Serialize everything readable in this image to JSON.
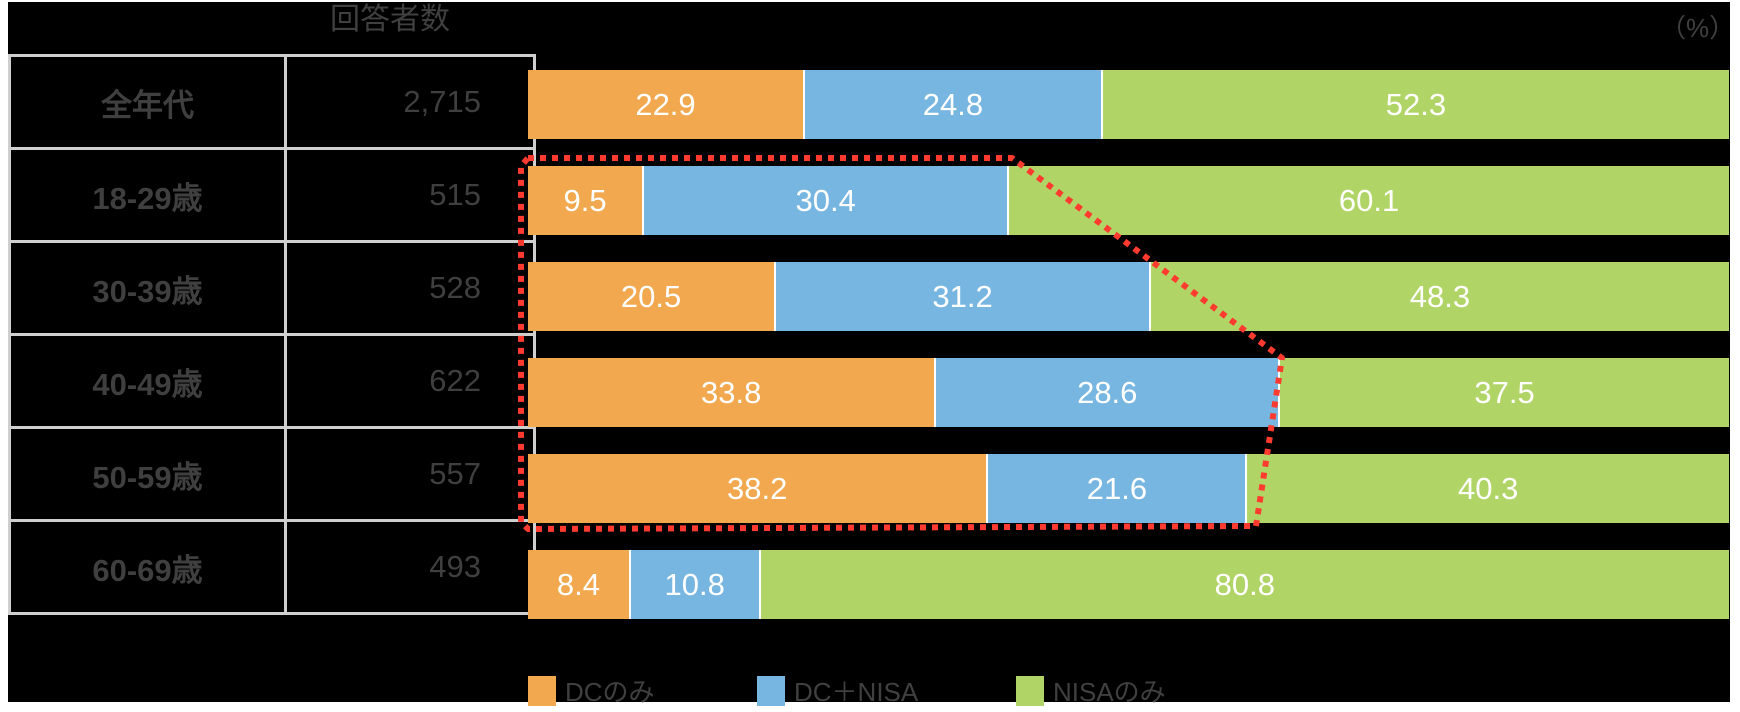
{
  "header": {
    "count_column_title": "回答者数",
    "unit_label": "（%）"
  },
  "colors": {
    "dc_only": "#f2a84f",
    "dc_nisa": "#78b6e2",
    "nisa_only": "#b1d466",
    "highlight_outline": "#ff3b30"
  },
  "rows": [
    {
      "label": "全年代",
      "count": "2,715",
      "values": [
        "22.9",
        "24.8",
        "52.3"
      ]
    },
    {
      "label": "18-29歳",
      "count": "515",
      "values": [
        "9.5",
        "30.4",
        "60.1"
      ]
    },
    {
      "label": "30-39歳",
      "count": "528",
      "values": [
        "20.5",
        "31.2",
        "48.3"
      ]
    },
    {
      "label": "40-49歳",
      "count": "622",
      "values": [
        "33.8",
        "28.6",
        "37.5"
      ]
    },
    {
      "label": "50-59歳",
      "count": "557",
      "values": [
        "38.2",
        "21.6",
        "40.3"
      ]
    },
    {
      "label": "60-69歳",
      "count": "493",
      "values": [
        "8.4",
        "10.8",
        "80.8"
      ]
    }
  ],
  "legend": [
    "DCのみ",
    "DC＋NISA",
    "NISAのみ"
  ],
  "chart_data": {
    "type": "bar",
    "orientation": "horizontal",
    "stacked": true,
    "percent_stacked": true,
    "categories": [
      "全年代",
      "18-29歳",
      "30-39歳",
      "40-49歳",
      "50-59歳",
      "60-69歳"
    ],
    "respondents": [
      2715,
      515,
      528,
      622,
      557,
      493
    ],
    "series": [
      {
        "name": "DCのみ",
        "color": "#f2a84f",
        "values": [
          22.9,
          9.5,
          20.5,
          33.8,
          38.2,
          8.4
        ]
      },
      {
        "name": "DC＋NISA",
        "color": "#78b6e2",
        "values": [
          24.8,
          30.4,
          31.2,
          28.6,
          21.6,
          10.8
        ]
      },
      {
        "name": "NISAのみ",
        "color": "#b1d466",
        "values": [
          52.3,
          60.1,
          48.3,
          37.5,
          40.3,
          80.8
        ]
      }
    ],
    "title": "",
    "xlabel": "",
    "ylabel": "",
    "unit": "%",
    "xlim": [
      0,
      100
    ],
    "grid": false,
    "legend_position": "bottom",
    "data_labels": true,
    "annotations": [
      "Red dotted outline highlighting DC-related segments for 18-29, 30-39, 40-49 and 50-59 age groups"
    ]
  }
}
